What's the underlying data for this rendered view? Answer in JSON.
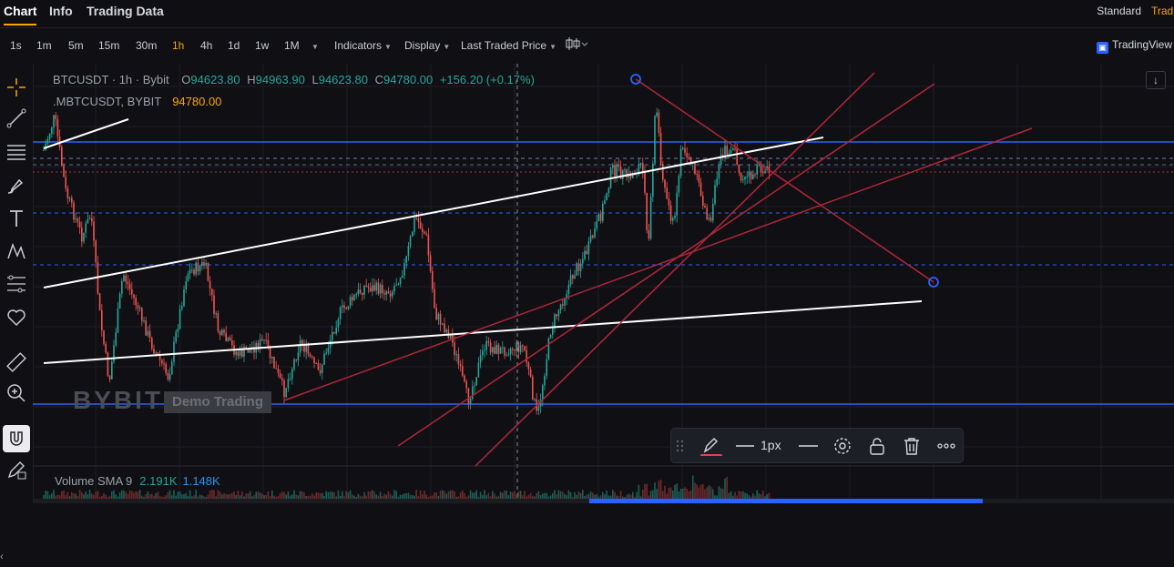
{
  "tabs": [
    {
      "label": "Chart",
      "active": true
    },
    {
      "label": "Info"
    },
    {
      "label": "Trading Data"
    }
  ],
  "view_modes": {
    "standard": "Standard",
    "tradingview": "Trad"
  },
  "toolbar": {
    "timeframes": [
      "1s",
      "1m",
      "5m",
      "15m",
      "30m",
      "1h",
      "4h",
      "1d",
      "1w",
      "1M"
    ],
    "active_timeframe": "1h",
    "indicators": "Indicators",
    "display": "Display",
    "price_type": "Last Traded Price",
    "tradingview_label": "TradingView"
  },
  "legend": {
    "symbol": "BTCUSDT · 1h · Bybit",
    "open": "94623.80",
    "high": "94963.90",
    "low": "94623.80",
    "close": "94780.00",
    "change": "+156.20 (+0.17%)",
    "mark_symbol": ".MBTCUSDT, BYBIT",
    "mark_price": "94780.00"
  },
  "volume": {
    "label": "Volume SMA 9",
    "value1": "2.191K",
    "value2": "1.148K"
  },
  "watermark": {
    "brand": "BYBIT",
    "demo": "Demo Trading"
  },
  "draw_toolbar": {
    "stroke_width": "1px"
  },
  "colors": {
    "up": "#26a69a",
    "down": "#ef5350",
    "accent": "#f7a600",
    "hline": "#2962ff",
    "trend_red": "#b2263a",
    "trend_white": "#ffffff"
  }
}
